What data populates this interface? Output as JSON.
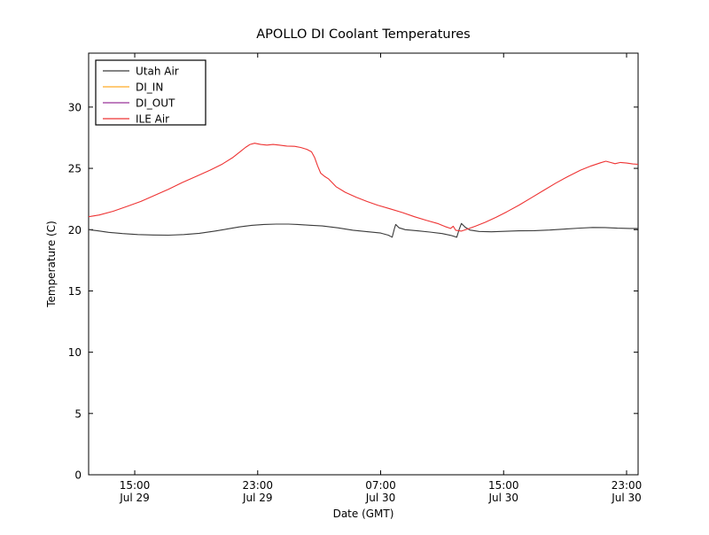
{
  "figure": {
    "background": "#ffffff",
    "frame_color": "#000000"
  },
  "chart_data": {
    "type": "line",
    "title": "APOLLO DI Coolant Temperatures",
    "xlabel": "Date (GMT)",
    "ylabel": "Temperature (C)",
    "x_hours_origin": "Jul 29 00:00 GMT",
    "xlim_hours": [
      12.0,
      47.75
    ],
    "ylim": [
      0,
      34.4
    ],
    "yticks": [
      0,
      5,
      10,
      15,
      20,
      25,
      30
    ],
    "xticks": [
      {
        "t": 15,
        "time": "15:00",
        "date": "Jul 29"
      },
      {
        "t": 23,
        "time": "23:00",
        "date": "Jul 29"
      },
      {
        "t": 31,
        "time": "07:00",
        "date": "Jul 30"
      },
      {
        "t": 39,
        "time": "15:00",
        "date": "Jul 30"
      },
      {
        "t": 47,
        "time": "23:00",
        "date": "Jul 30"
      }
    ],
    "grid": false,
    "legend_position": "upper-left",
    "series": [
      {
        "name": "Utah Air",
        "color": "#3a3a3a",
        "points": [
          [
            12.0,
            20.0
          ],
          [
            12.6,
            19.9
          ],
          [
            13.3,
            19.78
          ],
          [
            14.2,
            19.68
          ],
          [
            15.2,
            19.6
          ],
          [
            16.2,
            19.56
          ],
          [
            17.2,
            19.55
          ],
          [
            18.2,
            19.6
          ],
          [
            19.2,
            19.7
          ],
          [
            20.2,
            19.88
          ],
          [
            21.0,
            20.05
          ],
          [
            21.8,
            20.22
          ],
          [
            22.6,
            20.35
          ],
          [
            23.4,
            20.42
          ],
          [
            24.2,
            20.45
          ],
          [
            25.0,
            20.45
          ],
          [
            25.6,
            20.42
          ],
          [
            26.4,
            20.36
          ],
          [
            27.2,
            20.3
          ],
          [
            28.2,
            20.15
          ],
          [
            29.2,
            19.95
          ],
          [
            30.2,
            19.82
          ],
          [
            31.0,
            19.72
          ],
          [
            31.5,
            19.55
          ],
          [
            31.75,
            19.38
          ],
          [
            31.9,
            20.1
          ],
          [
            31.98,
            20.42
          ],
          [
            32.2,
            20.15
          ],
          [
            32.6,
            20.0
          ],
          [
            33.4,
            19.9
          ],
          [
            34.2,
            19.8
          ],
          [
            35.0,
            19.68
          ],
          [
            35.6,
            19.52
          ],
          [
            35.95,
            19.38
          ],
          [
            36.1,
            20.0
          ],
          [
            36.25,
            20.5
          ],
          [
            36.5,
            20.2
          ],
          [
            36.8,
            19.97
          ],
          [
            37.4,
            19.85
          ],
          [
            38.2,
            19.82
          ],
          [
            39.0,
            19.86
          ],
          [
            40.0,
            19.9
          ],
          [
            41.0,
            19.92
          ],
          [
            42.0,
            19.97
          ],
          [
            43.0,
            20.05
          ],
          [
            44.0,
            20.13
          ],
          [
            44.8,
            20.18
          ],
          [
            45.6,
            20.17
          ],
          [
            46.4,
            20.12
          ],
          [
            47.2,
            20.1
          ],
          [
            47.75,
            20.1
          ]
        ]
      },
      {
        "name": "DI_IN",
        "color": "#ffaa26",
        "points": []
      },
      {
        "name": "DI_OUT",
        "color": "#993399",
        "points": []
      },
      {
        "name": "ILE Air",
        "color": "#ee3333",
        "points": [
          [
            12.0,
            21.05
          ],
          [
            12.7,
            21.2
          ],
          [
            13.6,
            21.5
          ],
          [
            14.5,
            21.9
          ],
          [
            15.4,
            22.3
          ],
          [
            16.3,
            22.8
          ],
          [
            17.2,
            23.3
          ],
          [
            18.1,
            23.85
          ],
          [
            19.0,
            24.35
          ],
          [
            19.9,
            24.85
          ],
          [
            20.7,
            25.35
          ],
          [
            21.4,
            25.9
          ],
          [
            21.9,
            26.4
          ],
          [
            22.2,
            26.7
          ],
          [
            22.5,
            26.95
          ],
          [
            22.8,
            27.05
          ],
          [
            23.2,
            26.95
          ],
          [
            23.6,
            26.9
          ],
          [
            24.0,
            26.95
          ],
          [
            24.4,
            26.9
          ],
          [
            24.9,
            26.82
          ],
          [
            25.4,
            26.8
          ],
          [
            25.8,
            26.7
          ],
          [
            26.2,
            26.55
          ],
          [
            26.5,
            26.35
          ],
          [
            26.7,
            25.9
          ],
          [
            26.9,
            25.2
          ],
          [
            27.1,
            24.6
          ],
          [
            27.35,
            24.35
          ],
          [
            27.6,
            24.15
          ],
          [
            28.1,
            23.5
          ],
          [
            28.7,
            23.05
          ],
          [
            29.4,
            22.65
          ],
          [
            30.1,
            22.3
          ],
          [
            30.8,
            22.0
          ],
          [
            31.6,
            21.7
          ],
          [
            32.4,
            21.4
          ],
          [
            33.2,
            21.05
          ],
          [
            34.0,
            20.75
          ],
          [
            34.7,
            20.5
          ],
          [
            35.2,
            20.25
          ],
          [
            35.55,
            20.1
          ],
          [
            35.72,
            20.28
          ],
          [
            35.88,
            19.95
          ],
          [
            36.25,
            19.88
          ],
          [
            36.65,
            20.05
          ],
          [
            37.2,
            20.3
          ],
          [
            37.8,
            20.6
          ],
          [
            38.5,
            21.0
          ],
          [
            39.2,
            21.45
          ],
          [
            40.0,
            22.0
          ],
          [
            40.8,
            22.6
          ],
          [
            41.6,
            23.2
          ],
          [
            42.4,
            23.8
          ],
          [
            43.2,
            24.35
          ],
          [
            44.0,
            24.85
          ],
          [
            44.7,
            25.2
          ],
          [
            45.3,
            25.45
          ],
          [
            45.65,
            25.58
          ],
          [
            45.95,
            25.48
          ],
          [
            46.25,
            25.38
          ],
          [
            46.6,
            25.48
          ],
          [
            47.0,
            25.43
          ],
          [
            47.4,
            25.36
          ],
          [
            47.75,
            25.33
          ]
        ]
      }
    ]
  }
}
